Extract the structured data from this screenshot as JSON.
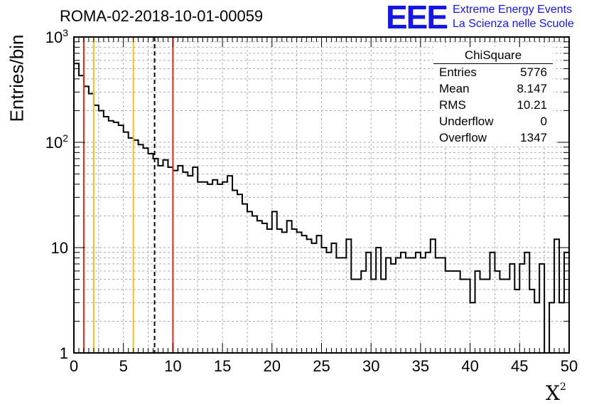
{
  "title": "ROMA-02-2018-10-01-00059",
  "logo": {
    "mark": "EEE",
    "line1": "Extreme Energy Events",
    "line2": "La Scienza nelle Scuole",
    "color": "#1515e6"
  },
  "stats": {
    "name": "ChiSquare",
    "rows": [
      {
        "label": "Entries",
        "value": "5776"
      },
      {
        "label": "Mean",
        "value": "8.147"
      },
      {
        "label": "RMS",
        "value": "10.21"
      },
      {
        "label": "Underflow",
        "value": "0"
      },
      {
        "label": "Overflow",
        "value": "1347"
      }
    ]
  },
  "chart_data": {
    "type": "histogram",
    "xlabel": "X",
    "xlabel_sup": "2",
    "ylabel": "Entries/bin",
    "xlim": [
      0,
      50
    ],
    "ylim": [
      1,
      1000
    ],
    "ylog": true,
    "grid": true,
    "bin_width": 0.5,
    "x_ticks": [
      "0",
      "5",
      "10",
      "15",
      "20",
      "25",
      "30",
      "35",
      "40",
      "45",
      "50"
    ],
    "y_ticks": [
      {
        "value": 1,
        "label": "1"
      },
      {
        "value": 10,
        "label": "10"
      },
      {
        "value": 100,
        "label": "10",
        "sup": "2"
      },
      {
        "value": 1000,
        "label": "10",
        "sup": "3"
      }
    ],
    "values": [
      560,
      430,
      340,
      290,
      225,
      200,
      175,
      160,
      155,
      145,
      125,
      110,
      105,
      95,
      88,
      78,
      70,
      60,
      68,
      58,
      54,
      60,
      52,
      48,
      58,
      42,
      42,
      40,
      44,
      40,
      42,
      48,
      35,
      32,
      26,
      22,
      20,
      18,
      17,
      15,
      22,
      15,
      14,
      18,
      15,
      14,
      13,
      12,
      11,
      13,
      10,
      9,
      11,
      8,
      8,
      12,
      5,
      5,
      6,
      9,
      5,
      10,
      5,
      8,
      7,
      8,
      9,
      8,
      8,
      9,
      8,
      9,
      12,
      8,
      8,
      6,
      6,
      6,
      5,
      5,
      3,
      6,
      5,
      5,
      9,
      6,
      5,
      5,
      7,
      4,
      7,
      9,
      4,
      3,
      7,
      0,
      3,
      12,
      3,
      9
    ],
    "vlines": [
      {
        "x": 1,
        "color": "#e8251b",
        "style": "solid"
      },
      {
        "x": 2,
        "color": "#f2c01e",
        "style": "solid"
      },
      {
        "x": 6,
        "color": "#f2c01e",
        "style": "solid"
      },
      {
        "x": 8.147,
        "color": "#000000",
        "style": "dashed"
      },
      {
        "x": 10,
        "color": "#e8251b",
        "style": "solid"
      }
    ]
  }
}
